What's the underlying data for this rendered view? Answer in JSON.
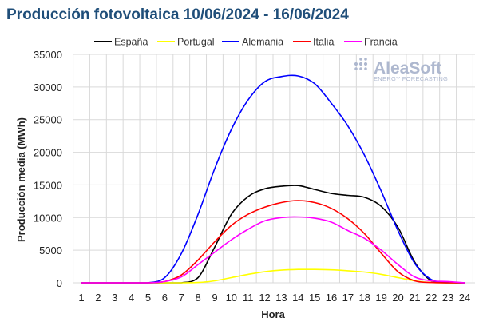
{
  "chart_data": {
    "type": "line",
    "title": "Producción fotovoltaica 10/06/2024 - 16/06/2024",
    "xlabel": "Hora",
    "ylabel": "Producción media (MWh)",
    "x": [
      1,
      2,
      3,
      4,
      5,
      6,
      7,
      8,
      9,
      10,
      11,
      12,
      13,
      14,
      15,
      16,
      17,
      18,
      19,
      20,
      21,
      22,
      23,
      24
    ],
    "xlim": [
      1,
      24
    ],
    "ylim": [
      0,
      35000
    ],
    "yticks": [
      0,
      5000,
      10000,
      15000,
      20000,
      25000,
      30000,
      35000
    ],
    "grid": true,
    "legend_position": "top",
    "series": [
      {
        "name": "España",
        "color": "#000000",
        "values": [
          0,
          0,
          0,
          0,
          0,
          0,
          0,
          800,
          5500,
          10500,
          13200,
          14400,
          14800,
          14900,
          14300,
          13700,
          13400,
          13100,
          11700,
          8500,
          3200,
          300,
          0,
          0
        ]
      },
      {
        "name": "Portugal",
        "color": "#ffff00",
        "values": [
          0,
          0,
          0,
          0,
          0,
          0,
          0,
          50,
          300,
          800,
          1300,
          1700,
          1950,
          2050,
          2050,
          2000,
          1850,
          1650,
          1300,
          800,
          300,
          50,
          0,
          0
        ]
      },
      {
        "name": "Alemania",
        "color": "#0000ff",
        "values": [
          0,
          0,
          0,
          0,
          0,
          800,
          4500,
          10500,
          17500,
          23500,
          28000,
          30800,
          31600,
          31700,
          30500,
          27500,
          24000,
          19500,
          14000,
          8000,
          3000,
          500,
          100,
          0
        ]
      },
      {
        "name": "Italia",
        "color": "#ff0000",
        "values": [
          0,
          0,
          0,
          0,
          0,
          200,
          1200,
          3500,
          6300,
          8800,
          10500,
          11600,
          12300,
          12600,
          12300,
          11400,
          9800,
          7500,
          4500,
          1700,
          300,
          50,
          0,
          0
        ]
      },
      {
        "name": "Francia",
        "color": "#ff00ff",
        "values": [
          0,
          0,
          0,
          0,
          0,
          200,
          900,
          2800,
          4700,
          6600,
          8200,
          9500,
          10000,
          10100,
          9900,
          9300,
          8000,
          6800,
          5000,
          2800,
          900,
          300,
          200,
          0
        ]
      }
    ]
  },
  "logo": {
    "main": "AleaSoft",
    "sub": "ENERGY FORECASTING",
    "icon": "dots-grid-icon"
  }
}
